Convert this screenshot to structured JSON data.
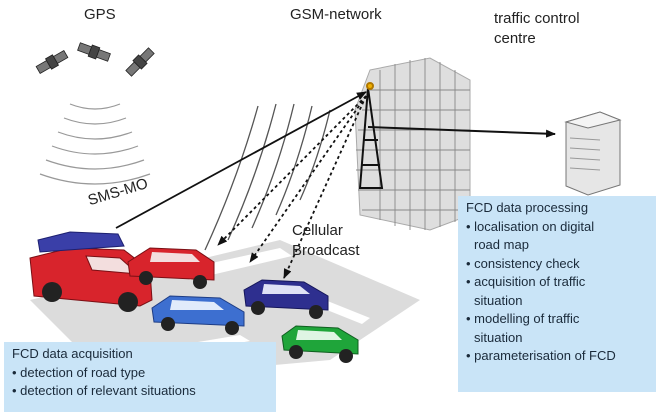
{
  "labels": {
    "gps": "GPS",
    "gsm": "GSM-network",
    "tcc_line1": "traffic control",
    "tcc_line2": "centre",
    "sms": "SMS-MO",
    "cb_line1": "Cellular",
    "cb_line2": "Broadcast"
  },
  "acquisition": {
    "title": "FCD data acquisition",
    "items": [
      "• detection of road type",
      "• detection of relevant situations"
    ]
  },
  "processing": {
    "title": "FCD data processing",
    "lines": [
      "• localisation on digital",
      "road map",
      "• consistency check",
      "• acquisition of traffic",
      "situation",
      "• modelling of traffic",
      "situation",
      "• parameterisation of FCD"
    ]
  },
  "colors": {
    "box_fill": "#c9e4f7",
    "gsm_grid": "#d8d8d8",
    "car_red": "#d8242c",
    "car_blue": "#3d6fd0",
    "car_navy": "#2e2f8f",
    "car_green": "#1fa53a"
  }
}
